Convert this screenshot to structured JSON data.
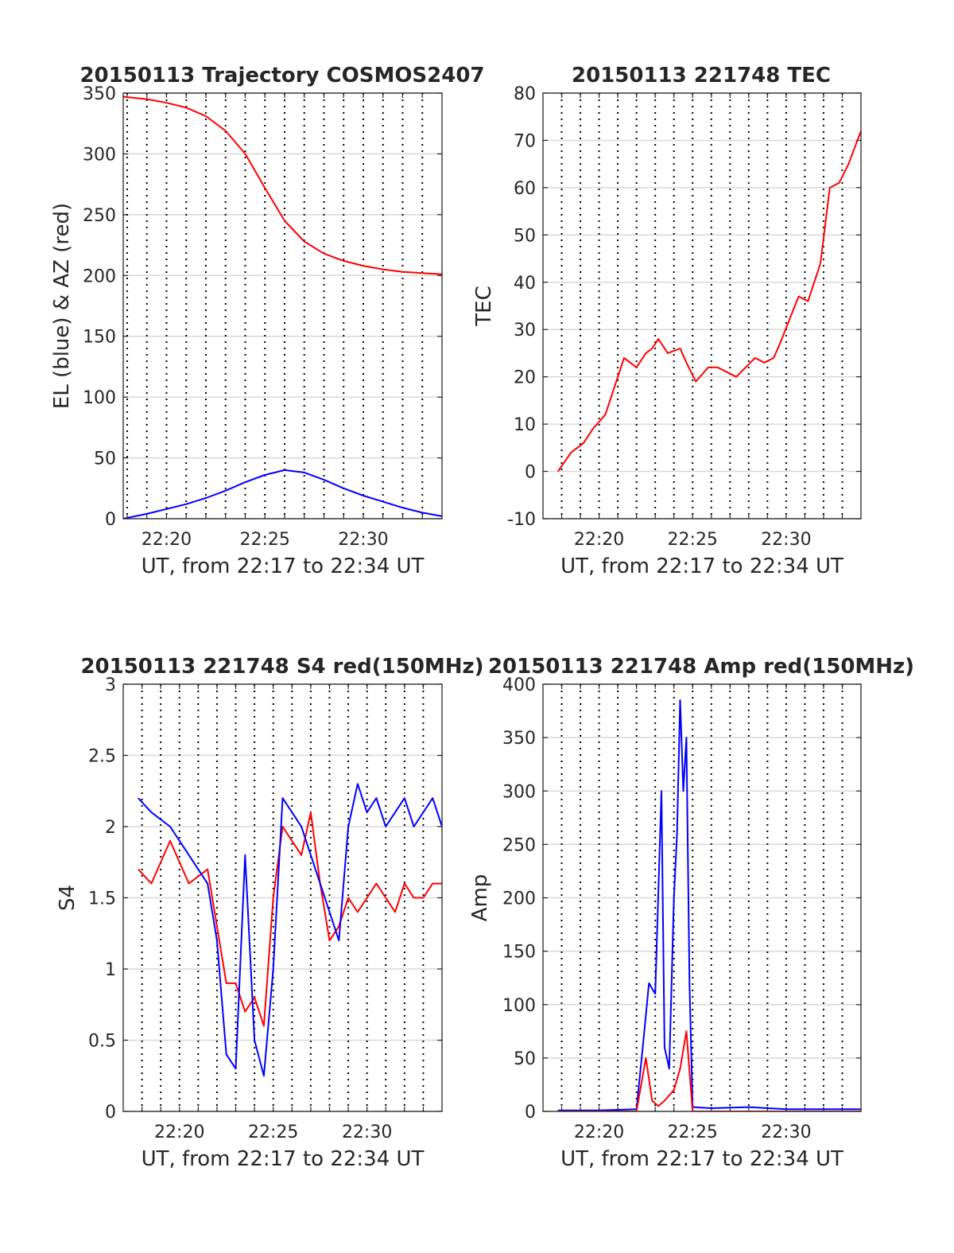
{
  "chart_data": [
    {
      "type": "line",
      "title": "20150113 Trajectory COSMOS2407",
      "xlabel": "UT, from 22:17 to 22:34 UT",
      "ylabel": "EL (blue) & AZ (red)",
      "xlim": [
        "22:17:48",
        "22:34:00"
      ],
      "ylim": [
        0,
        350
      ],
      "yticks": [
        0,
        50,
        100,
        150,
        200,
        250,
        300,
        350
      ],
      "xticks": [
        "22:20",
        "22:25",
        "22:30"
      ],
      "grid": true,
      "series": [
        {
          "color": "#ff0000",
          "x": [
            "22:17:48",
            "22:19:00",
            "22:20:00",
            "22:21:00",
            "22:22:00",
            "22:23:00",
            "22:24:00",
            "22:25:00",
            "22:26:00",
            "22:27:00",
            "22:28:00",
            "22:29:00",
            "22:30:00",
            "22:31:00",
            "22:32:00",
            "22:33:00",
            "22:34:00"
          ],
          "values": [
            347,
            345,
            342,
            338,
            331,
            319,
            300,
            272,
            245,
            228,
            218,
            212,
            208,
            205,
            203,
            202,
            201
          ]
        },
        {
          "color": "#0000ff",
          "x": [
            "22:17:48",
            "22:19:00",
            "22:20:00",
            "22:21:00",
            "22:22:00",
            "22:23:00",
            "22:24:00",
            "22:25:00",
            "22:26:00",
            "22:27:00",
            "22:28:00",
            "22:29:00",
            "22:30:00",
            "22:31:00",
            "22:32:00",
            "22:33:00",
            "22:34:00"
          ],
          "values": [
            0,
            4,
            8,
            12,
            17,
            23,
            30,
            36,
            40,
            38,
            32,
            25,
            19,
            14,
            9,
            5,
            2
          ]
        }
      ]
    },
    {
      "type": "line",
      "title": "20150113 221748 TEC",
      "xlabel": "UT, from 22:17 to 22:34 UT",
      "ylabel": "TEC",
      "xlim": [
        "22:17:00",
        "22:34:00"
      ],
      "ylim": [
        -10,
        80
      ],
      "yticks": [
        -10,
        0,
        10,
        20,
        30,
        40,
        50,
        60,
        70,
        80
      ],
      "xticks": [
        "22:20",
        "22:25",
        "22:30"
      ],
      "grid": true,
      "series": [
        {
          "color": "#ff0000",
          "x": [
            "22:17:48",
            "22:18:30",
            "22:19:10",
            "22:19:40",
            "22:20:20",
            "22:20:50",
            "22:21:20",
            "22:22:00",
            "22:22:30",
            "22:22:50",
            "22:23:10",
            "22:23:40",
            "22:24:20",
            "22:24:40",
            "22:25:10",
            "22:25:50",
            "22:26:20",
            "22:26:50",
            "22:27:20",
            "22:27:50",
            "22:28:20",
            "22:28:50",
            "22:29:20",
            "22:29:40",
            "22:30:10",
            "22:30:40",
            "22:31:10",
            "22:31:30",
            "22:31:50",
            "22:32:20",
            "22:32:50",
            "22:33:20",
            "22:34:00"
          ],
          "values": [
            0,
            4,
            6,
            9,
            12,
            18,
            24,
            22,
            25,
            26,
            28,
            25,
            26,
            23,
            19,
            22,
            22,
            21,
            20,
            22,
            24,
            23,
            24,
            27,
            32,
            37,
            36,
            40,
            44,
            60,
            61,
            65,
            72
          ]
        }
      ]
    },
    {
      "type": "line",
      "title": "20150113 221748 S4 red(150MHz)",
      "xlabel": "UT, from 22:17 to 22:34 UT",
      "ylabel": "S4",
      "xlim": [
        "22:17:00",
        "22:34:00"
      ],
      "ylim": [
        0,
        3
      ],
      "yticks": [
        0,
        0.5,
        1,
        1.5,
        2,
        2.5,
        3
      ],
      "xticks": [
        "22:20",
        "22:25",
        "22:30"
      ],
      "grid": true,
      "series": [
        {
          "color": "#ff0000",
          "x": [
            "22:17:48",
            "22:18:30",
            "22:19:30",
            "22:20:30",
            "22:21:30",
            "22:22:30",
            "22:23:00",
            "22:23:30",
            "22:24:00",
            "22:24:30",
            "22:25:00",
            "22:25:30",
            "22:26:00",
            "22:26:30",
            "22:27:00",
            "22:27:30",
            "22:28:00",
            "22:28:30",
            "22:29:00",
            "22:29:30",
            "22:30:00",
            "22:30:30",
            "22:31:00",
            "22:31:30",
            "22:32:00",
            "22:32:30",
            "22:33:00",
            "22:33:30",
            "22:34:00"
          ],
          "values": [
            1.7,
            1.6,
            1.9,
            1.6,
            1.7,
            0.9,
            0.9,
            0.7,
            0.8,
            0.6,
            1.5,
            2.0,
            1.9,
            1.8,
            2.1,
            1.6,
            1.2,
            1.3,
            1.5,
            1.4,
            1.5,
            1.6,
            1.5,
            1.4,
            1.6,
            1.5,
            1.5,
            1.6,
            1.6
          ]
        },
        {
          "color": "#0000ff",
          "x": [
            "22:17:48",
            "22:18:30",
            "22:19:30",
            "22:20:30",
            "22:21:30",
            "22:22:00",
            "22:22:30",
            "22:23:00",
            "22:23:30",
            "22:24:00",
            "22:24:30",
            "22:25:00",
            "22:25:30",
            "22:26:00",
            "22:26:30",
            "22:27:00",
            "22:27:30",
            "22:28:00",
            "22:28:30",
            "22:29:00",
            "22:29:30",
            "22:30:00",
            "22:30:30",
            "22:31:00",
            "22:31:30",
            "22:32:00",
            "22:32:30",
            "22:33:00",
            "22:33:30",
            "22:34:00"
          ],
          "values": [
            2.2,
            2.1,
            2.0,
            1.8,
            1.6,
            1.2,
            0.4,
            0.3,
            1.8,
            0.5,
            0.25,
            1.0,
            2.2,
            2.1,
            2.0,
            1.8,
            1.6,
            1.4,
            1.2,
            2.0,
            2.3,
            2.1,
            2.2,
            2.0,
            2.1,
            2.2,
            2.0,
            2.1,
            2.2,
            2.0
          ]
        }
      ]
    },
    {
      "type": "line",
      "title": "20150113 221748 Amp red(150MHz)",
      "xlabel": "UT, from 22:17 to 22:34 UT",
      "ylabel": "Amp",
      "xlim": [
        "22:17:00",
        "22:34:00"
      ],
      "ylim": [
        0,
        400
      ],
      "yticks": [
        0,
        50,
        100,
        150,
        200,
        250,
        300,
        350,
        400
      ],
      "xticks": [
        "22:20",
        "22:25",
        "22:30"
      ],
      "grid": true,
      "series": [
        {
          "color": "#0000ff",
          "x": [
            "22:17:48",
            "22:20:00",
            "22:22:00",
            "22:22:20",
            "22:22:40",
            "22:23:00",
            "22:23:20",
            "22:23:30",
            "22:23:45",
            "22:24:00",
            "22:24:10",
            "22:24:20",
            "22:24:30",
            "22:24:40",
            "22:24:50",
            "22:25:00",
            "22:26:00",
            "22:28:00",
            "22:30:00",
            "22:32:00",
            "22:34:00"
          ],
          "values": [
            1,
            1,
            2,
            60,
            120,
            110,
            300,
            60,
            40,
            200,
            260,
            385,
            300,
            350,
            120,
            4,
            3,
            4,
            2,
            2,
            2
          ]
        },
        {
          "color": "#ff0000",
          "x": [
            "22:17:48",
            "22:22:00",
            "22:22:30",
            "22:22:50",
            "22:23:10",
            "22:23:30",
            "22:24:00",
            "22:24:20",
            "22:24:40",
            "22:25:00",
            "22:34:00"
          ],
          "values": [
            0,
            0,
            50,
            10,
            5,
            10,
            20,
            40,
            75,
            0,
            0
          ]
        }
      ]
    }
  ]
}
